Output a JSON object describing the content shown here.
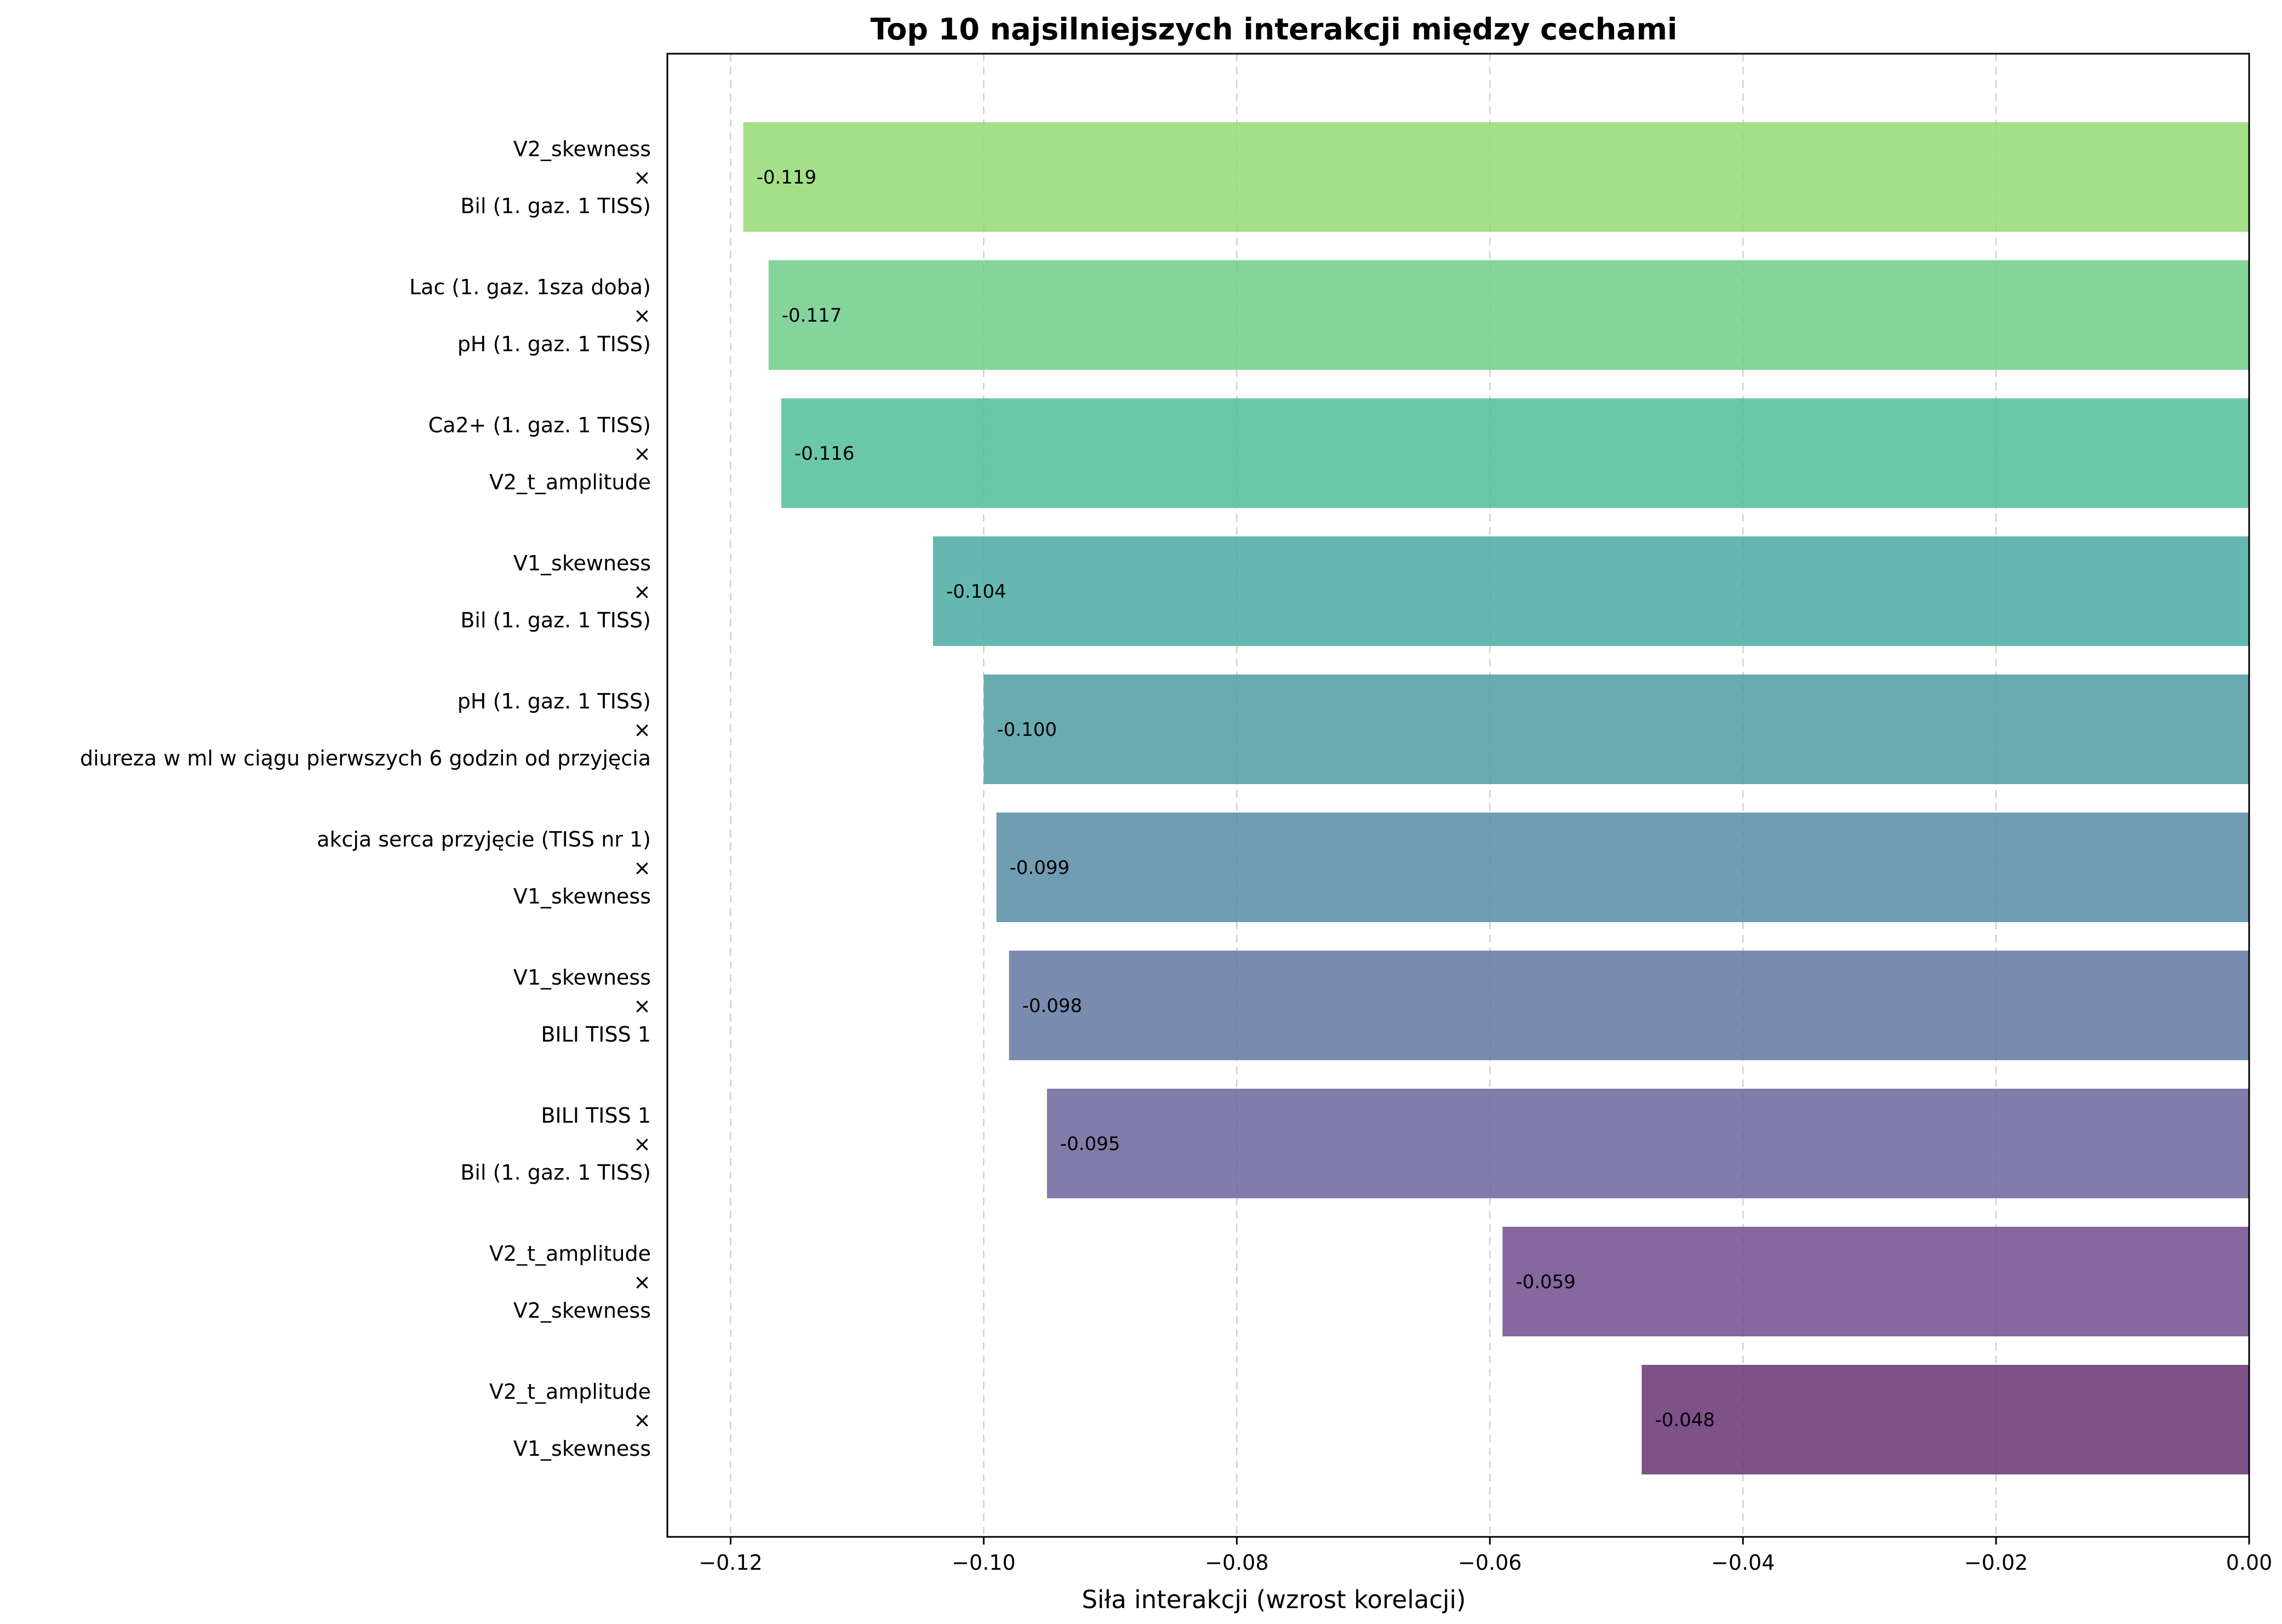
{
  "chart_data": {
    "type": "bar",
    "orientation": "horizontal",
    "title": "Top 10 najsilniejszych interakcji między cechami",
    "xlabel": "Siła interakcji (wzrost korelacji)",
    "ylabel": "",
    "xlim": [
      -0.125,
      0.0
    ],
    "xticks": [
      -0.12,
      -0.1,
      -0.08,
      -0.06,
      -0.04,
      -0.02,
      0.0
    ],
    "xtick_labels": [
      "−0.12",
      "−0.10",
      "−0.08",
      "−0.06",
      "−0.04",
      "−0.02",
      "0.00"
    ],
    "grid": "x-dashed",
    "categories": [
      {
        "feature_a": "V2_skewness",
        "separator": "×",
        "feature_b": "Bil (1. gaz. 1 TISS)"
      },
      {
        "feature_a": "Lac (1. gaz. 1sza doba)",
        "separator": "×",
        "feature_b": "pH (1. gaz. 1 TISS)"
      },
      {
        "feature_a": "Ca2+ (1. gaz. 1 TISS)",
        "separator": "×",
        "feature_b": "V2_t_amplitude"
      },
      {
        "feature_a": "V1_skewness",
        "separator": "×",
        "feature_b": "Bil (1. gaz. 1 TISS)"
      },
      {
        "feature_a": "pH (1. gaz. 1 TISS)",
        "separator": "×",
        "feature_b": "diureza w ml w ciągu pierwszych 6 godzin od przyjęcia"
      },
      {
        "feature_a": "akcja serca przyjęcie (TISS nr 1)",
        "separator": "×",
        "feature_b": "V1_skewness"
      },
      {
        "feature_a": "V1_skewness",
        "separator": "×",
        "feature_b": "BILI TISS 1"
      },
      {
        "feature_a": "BILI TISS 1",
        "separator": "×",
        "feature_b": "Bil (1. gaz. 1 TISS)"
      },
      {
        "feature_a": "V2_t_amplitude",
        "separator": "×",
        "feature_b": "V2_skewness"
      },
      {
        "feature_a": "V2_t_amplitude",
        "separator": "×",
        "feature_b": "V1_skewness"
      }
    ],
    "values": [
      -0.119,
      -0.117,
      -0.116,
      -0.104,
      -0.1,
      -0.099,
      -0.098,
      -0.095,
      -0.059,
      -0.048
    ],
    "value_labels": [
      "-0.119",
      "-0.117",
      "-0.116",
      "-0.104",
      "-0.100",
      "-0.099",
      "-0.098",
      "-0.095",
      "-0.059",
      "-0.048"
    ],
    "colors": [
      "#95d973",
      "#6ecc89",
      "#52bd9a",
      "#4aaba1",
      "#509ca4",
      "#588ca6",
      "#6178a2",
      "#6b659a",
      "#6f4d8d",
      "#673372"
    ]
  }
}
